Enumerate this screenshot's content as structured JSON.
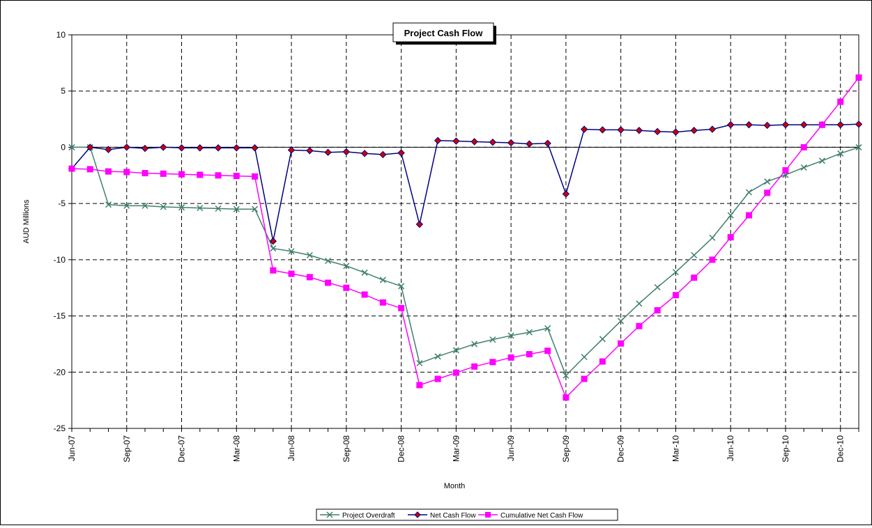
{
  "chart_data": {
    "type": "line",
    "title": "Project Cash Flow",
    "xlabel": "Month",
    "ylabel": "AUD Millions",
    "ylabel_suffix": ".",
    "ylim": [
      -25,
      10
    ],
    "yticks": [
      10,
      5,
      0,
      -5,
      -10,
      -15,
      -20,
      -25
    ],
    "grid": true,
    "legend_position": "bottom",
    "x_tick_labels": [
      "Jun-07",
      "Sep-07",
      "Dec-07",
      "Mar-08",
      "Jun-08",
      "Sep-08",
      "Dec-08",
      "Mar-09",
      "Jun-09",
      "Sep-09",
      "Dec-09",
      "Mar-10",
      "Jun-10",
      "Sep-10",
      "Dec-10"
    ],
    "x": [
      "Jun-07",
      "Jul-07",
      "Aug-07",
      "Sep-07",
      "Oct-07",
      "Nov-07",
      "Dec-07",
      "Jan-08",
      "Feb-08",
      "Mar-08",
      "Apr-08",
      "May-08",
      "Jun-08",
      "Jul-08",
      "Aug-08",
      "Sep-08",
      "Oct-08",
      "Nov-08",
      "Dec-08",
      "Jan-09",
      "Feb-09",
      "Mar-09",
      "Apr-09",
      "May-09",
      "Jun-09",
      "Jul-09",
      "Aug-09",
      "Sep-09",
      "Oct-09",
      "Nov-09",
      "Dec-09",
      "Jan-10",
      "Feb-10",
      "Mar-10",
      "Apr-10",
      "May-10",
      "Jun-10",
      "Jul-10",
      "Aug-10",
      "Sep-10",
      "Oct-10",
      "Nov-10",
      "Dec-10",
      "Jan-11"
    ],
    "series": [
      {
        "name": "Project Overdraft",
        "color": "#3f7f6f",
        "marker": "x",
        "values": [
          0,
          0,
          -5.1,
          -5.2,
          -5.2,
          -5.3,
          -5.35,
          -5.4,
          -5.45,
          -5.5,
          -5.5,
          -9.0,
          -9.25,
          -9.6,
          -10.1,
          -10.55,
          -11.15,
          -11.8,
          -12.35,
          -19.2,
          -18.6,
          -18.05,
          -17.5,
          -17.1,
          -16.75,
          -16.45,
          -16.1,
          -20.3,
          -18.65,
          -17.05,
          -15.45,
          -13.9,
          -12.45,
          -11.1,
          -9.6,
          -8.05,
          -6.05,
          -4.0,
          -3.05,
          -2.45,
          -1.8,
          -1.2,
          -0.55,
          0
        ]
      },
      {
        "name": "Net Cash Flow",
        "color": "#000080",
        "marker": "diamond",
        "values": [
          -1.9,
          0,
          -0.2,
          0,
          -0.1,
          0,
          -0.05,
          -0.05,
          -0.05,
          -0.05,
          -0.05,
          -8.35,
          -0.25,
          -0.3,
          -0.45,
          -0.4,
          -0.55,
          -0.65,
          -0.5,
          -6.85,
          0.6,
          0.55,
          0.5,
          0.45,
          0.4,
          0.3,
          0.35,
          -4.15,
          1.6,
          1.55,
          1.55,
          1.5,
          1.4,
          1.35,
          1.5,
          1.6,
          2.0,
          2.0,
          1.95,
          2.0,
          2.0,
          2.0,
          2.0,
          2.05
        ]
      },
      {
        "name": "Cumulative Net Cash Flow",
        "color": "#ff00ff",
        "marker": "square",
        "values": [
          -1.9,
          -1.95,
          -2.15,
          -2.2,
          -2.3,
          -2.35,
          -2.4,
          -2.45,
          -2.5,
          -2.55,
          -2.6,
          -10.95,
          -11.25,
          -11.55,
          -12.05,
          -12.5,
          -13.1,
          -13.8,
          -14.3,
          -21.15,
          -20.6,
          -20.05,
          -19.5,
          -19.1,
          -18.7,
          -18.4,
          -18.1,
          -22.25,
          -20.6,
          -19.05,
          -17.45,
          -15.9,
          -14.5,
          -13.15,
          -11.6,
          -10.0,
          -8.0,
          -6.05,
          -4.05,
          -2.05,
          0,
          2.0,
          4.05,
          6.2
        ]
      }
    ]
  }
}
